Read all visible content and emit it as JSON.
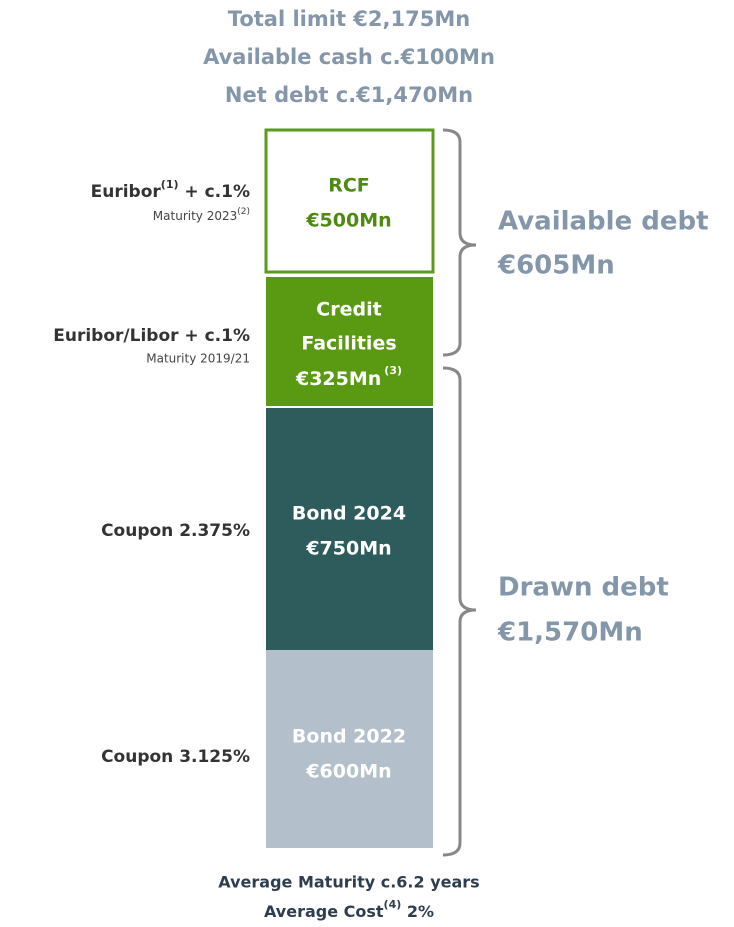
{
  "header": {
    "lines": [
      "Total limit €2,175Mn",
      "Available cash c.€100Mn",
      "Net debt c.€1,470Mn"
    ]
  },
  "blocks": [
    {
      "name": "RCF",
      "amount": "€500Mn"
    },
    {
      "name_lines": [
        "Credit",
        "Facilities"
      ],
      "amount": "€325Mn",
      "note": "(3)"
    },
    {
      "name": "Bond 2024",
      "amount": "€750Mn"
    },
    {
      "name": "Bond 2022",
      "amount": "€600Mn"
    }
  ],
  "left_labels": [
    {
      "text": "Euribor",
      "sup": "(1)",
      "rest": " + c.1%",
      "sub_text": "Maturity 2023",
      "sub_sup": "(2)"
    },
    {
      "text": "Euribor/Libor + c.1%",
      "sub_text": "Maturity 2019/21"
    },
    {
      "text": "Coupon 2.375%"
    },
    {
      "text": "Coupon 3.125%"
    }
  ],
  "brackets": [
    {
      "label": "Available debt",
      "amount": "€605Mn"
    },
    {
      "label": "Drawn debt",
      "amount": "€1,570Mn"
    }
  ],
  "footer": {
    "line1": "Average Maturity c.6.2 years",
    "line2": {
      "text": "Average Cost",
      "sup": "(4)",
      "rest": " 2%"
    }
  }
}
